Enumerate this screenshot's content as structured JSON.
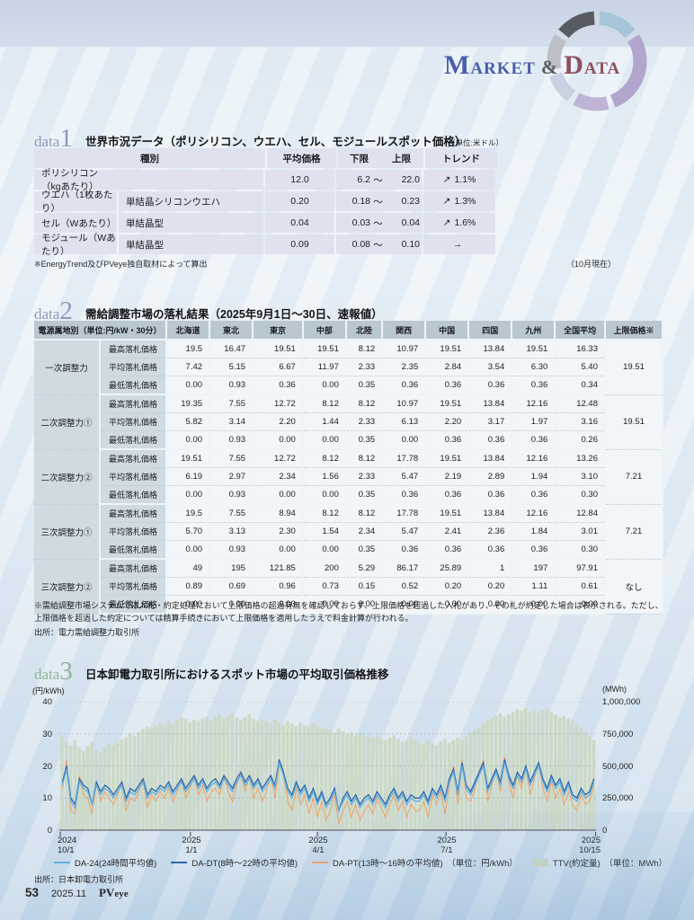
{
  "logo": {
    "m": "M",
    "arket": "ARKET",
    "amp": "&",
    "d": "D",
    "ata": "ATA"
  },
  "data1": {
    "word": "data",
    "num": "1",
    "title": "世界市況データ（ポリシリコン、ウエハ、セル、モジュールスポット価格）",
    "unit_note": "（単位:米ドル）",
    "headers": {
      "type": "種別",
      "avg": "平均価格",
      "lower": "下限",
      "upper": "上限",
      "trend": "トレンド"
    },
    "rows": [
      {
        "name": "ポリシリコン（kgあたり）",
        "spec": "",
        "avg": "12.0",
        "lower": "6.2",
        "tilde": "～",
        "upper": "22.0",
        "trend_arrow": "↗",
        "trend": "1.1%"
      },
      {
        "name": "ウエハ（1枚あたり）",
        "spec": "単結晶シリコンウエハ",
        "avg": "0.20",
        "lower": "0.18",
        "tilde": "～",
        "upper": "0.23",
        "trend_arrow": "↗",
        "trend": "1.3%"
      },
      {
        "name": "セル（Wあたり）",
        "spec": "単結晶型",
        "avg": "0.04",
        "lower": "0.03",
        "tilde": "～",
        "upper": "0.04",
        "trend_arrow": "↗",
        "trend": "1.6%"
      },
      {
        "name": "モジュール（Wあたり）",
        "spec": "単結晶型",
        "avg": "0.09",
        "lower": "0.08",
        "tilde": "～",
        "upper": "0.10",
        "trend_arrow": "→",
        "trend": ""
      }
    ],
    "footnote": "※EnergyTrend及びPVeye独自取材によって算出",
    "asof": "（10月現在）"
  },
  "data2": {
    "word": "data",
    "num": "2",
    "title": "需給調整市場の落札結果（2025年9月1日～30日、速報値）",
    "col_header_first": "電源属地別（単位:円/kW・30分）",
    "regions": [
      "北海道",
      "東北",
      "東京",
      "中部",
      "北陸",
      "関西",
      "中国",
      "四国",
      "九州",
      "全国平均"
    ],
    "limit_header": "上限価格※",
    "row_labels": [
      "最高落札価格",
      "平均落札価格",
      "最低落札価格"
    ],
    "groups": [
      {
        "name": "一次調整力",
        "max": [
          "19.5",
          "16.47",
          "19.51",
          "19.51",
          "8.12",
          "10.97",
          "19.51",
          "13.84",
          "19.51",
          "16.33"
        ],
        "avg": [
          "7.42",
          "5.15",
          "6.67",
          "11.97",
          "2.33",
          "2.35",
          "2.84",
          "3.54",
          "6.30",
          "5.40"
        ],
        "min": [
          "0.00",
          "0.93",
          "0.36",
          "0.00",
          "0.35",
          "0.36",
          "0.36",
          "0.36",
          "0.36",
          "0.34"
        ],
        "limit": "19.51"
      },
      {
        "name": "二次調整力①",
        "max": [
          "19.35",
          "7.55",
          "12.72",
          "8.12",
          "8.12",
          "10.97",
          "19.51",
          "13.84",
          "12.16",
          "12.48"
        ],
        "avg": [
          "5.82",
          "3.14",
          "2.20",
          "1.44",
          "2.33",
          "6.13",
          "2.20",
          "3.17",
          "1.97",
          "3.16"
        ],
        "min": [
          "0.00",
          "0.93",
          "0.00",
          "0.00",
          "0.35",
          "0.00",
          "0.36",
          "0.36",
          "0.36",
          "0.26"
        ],
        "limit": "19.51"
      },
      {
        "name": "二次調整力②",
        "max": [
          "19.51",
          "7.55",
          "12.72",
          "8.12",
          "8.12",
          "17.78",
          "19.51",
          "13.84",
          "12.16",
          "13.26"
        ],
        "avg": [
          "6.19",
          "2.97",
          "2.34",
          "1.56",
          "2.33",
          "5.47",
          "2.19",
          "2.89",
          "1.94",
          "3.10"
        ],
        "min": [
          "0.00",
          "0.93",
          "0.00",
          "0.00",
          "0.35",
          "0.36",
          "0.36",
          "0.36",
          "0.36",
          "0.30"
        ],
        "limit": "7.21"
      },
      {
        "name": "三次調整力①",
        "max": [
          "19.5",
          "7.55",
          "8.94",
          "8.12",
          "8.12",
          "17.78",
          "19.51",
          "13.84",
          "12.16",
          "12.84"
        ],
        "avg": [
          "5.70",
          "3.13",
          "2.30",
          "1.54",
          "2.34",
          "5.47",
          "2.41",
          "2.36",
          "1.84",
          "3.01"
        ],
        "min": [
          "0.00",
          "0.93",
          "0.00",
          "0.00",
          "0.35",
          "0.36",
          "0.36",
          "0.36",
          "0.36",
          "0.30"
        ],
        "limit": "7.21"
      },
      {
        "name": "三次調整力②",
        "max": [
          "49",
          "195",
          "121.85",
          "200",
          "5.29",
          "86.17",
          "25.89",
          "1",
          "197",
          "97.91"
        ],
        "avg": [
          "0.89",
          "0.69",
          "0.96",
          "0.73",
          "0.15",
          "0.52",
          "0.20",
          "0.20",
          "1.11",
          "0.61"
        ],
        "min": [
          "0.00",
          "0.00",
          "0.00",
          "0.00",
          "0.00",
          "0.00",
          "0.00",
          "0.00",
          "0.00",
          "0.00"
        ],
        "limit": "なし"
      }
    ],
    "footnote": "※需給調整市場システムでは入札・約定処理において上限価格の超過有無を確認しておらず、上限価格を超過した入札があり、その札が約定した場合は表示される。ただし、上限価格を超過した約定については精算手続きにおいて上限価格を適用したうえで料金計算が行われる。",
    "source": "出所：電力需給調整力取引所"
  },
  "data3": {
    "word": "data",
    "num": "3",
    "title": "日本卸電力取引所におけるスポット市場の平均取引価格推移",
    "legend": [
      "DA-24(24時間平均値)",
      "DA-DT(8時～22時の平均値)",
      "DA-PT(13時～16時の平均値)　（単位：円/kWh）",
      "TTV(約定量)　（単位：MWh）"
    ],
    "source": "出所：日本卸電力取引所"
  },
  "chart_data": {
    "type": "line",
    "title": "日本卸電力取引所におけるスポット市場の平均取引価格推移",
    "ylabel_left": "(円/kWh)",
    "ylabel_right": "(MWh)",
    "ylim_left": [
      0,
      40
    ],
    "ylim_right": [
      0,
      1000000
    ],
    "yticks_left": [
      0,
      10,
      20,
      30,
      40
    ],
    "yticks_right": [
      "0",
      "250,000",
      "500,000",
      "750,000",
      "1,000,000"
    ],
    "grid": "dotted horizontal",
    "legend_position": "bottom",
    "x_labels": [
      {
        "year": "2024",
        "date": "10/1",
        "pos": 0
      },
      {
        "year": "2025",
        "date": "1/1",
        "pos": 0.243
      },
      {
        "year": "2025",
        "date": "4/1",
        "pos": 0.48
      },
      {
        "year": "2025",
        "date": "7/1",
        "pos": 0.72
      },
      {
        "year": "2025",
        "date": "10/15",
        "pos": 1
      }
    ],
    "series": [
      {
        "name": "DA-24(24時間平均値)",
        "type": "line",
        "axis": "left",
        "color": "#5fb0e2",
        "values": [
          14,
          19,
          9,
          7,
          15,
          13,
          12,
          8,
          14,
          11,
          13,
          12,
          10,
          12,
          14,
          9,
          12,
          11,
          13,
          15,
          10,
          12,
          11,
          13,
          12,
          14,
          11,
          13,
          15,
          12,
          14,
          16,
          13,
          15,
          12,
          14,
          15,
          13,
          16,
          14,
          12,
          15,
          17,
          14,
          16,
          13,
          15,
          12,
          14,
          16,
          13,
          21,
          17,
          12,
          10,
          14,
          11,
          13,
          9,
          12,
          8,
          11,
          7,
          9,
          12,
          6,
          9,
          11,
          8,
          10,
          7,
          9,
          10,
          8,
          11,
          9,
          7,
          10,
          12,
          9,
          11,
          8,
          10,
          9,
          9,
          11,
          8,
          12,
          10,
          13,
          9,
          15,
          18,
          11,
          20,
          13,
          11,
          14,
          17,
          20,
          12,
          15,
          18,
          14,
          21,
          16,
          13,
          17,
          15,
          19,
          14,
          17,
          20,
          15,
          12,
          16,
          13,
          15,
          11,
          14,
          10,
          9,
          12,
          10,
          11,
          15
        ]
      },
      {
        "name": "DA-DT(8時～22時の平均値)",
        "type": "line",
        "axis": "left",
        "color": "#2f63ad",
        "values": [
          15,
          20,
          10,
          8,
          16,
          14,
          13,
          8,
          15,
          12,
          14,
          13,
          11,
          13,
          15,
          10,
          13,
          12,
          14,
          16,
          11,
          13,
          12,
          14,
          13,
          15,
          12,
          14,
          16,
          13,
          15,
          17,
          14,
          16,
          13,
          15,
          16,
          14,
          17,
          15,
          13,
          16,
          18,
          15,
          17,
          14,
          16,
          13,
          15,
          17,
          14,
          22,
          18,
          13,
          11,
          15,
          12,
          14,
          10,
          13,
          9,
          12,
          8,
          10,
          13,
          6,
          10,
          12,
          9,
          11,
          8,
          10,
          11,
          9,
          12,
          10,
          8,
          11,
          13,
          10,
          12,
          9,
          11,
          10,
          10,
          12,
          9,
          13,
          11,
          14,
          10,
          16,
          19,
          12,
          21,
          14,
          12,
          15,
          18,
          21,
          13,
          16,
          19,
          15,
          22,
          17,
          14,
          18,
          16,
          20,
          15,
          18,
          21,
          16,
          13,
          17,
          14,
          16,
          12,
          15,
          11,
          10,
          13,
          11,
          12,
          16
        ]
      },
      {
        "name": "DA-PT(13時～16時の平均値)（単位：円/kWh）",
        "type": "line",
        "axis": "left",
        "color": "#f2a066",
        "values": [
          13,
          22,
          6,
          5,
          17,
          11,
          10,
          5,
          15,
          9,
          12,
          10,
          8,
          11,
          15,
          6,
          10,
          9,
          12,
          16,
          7,
          11,
          9,
          12,
          10,
          13,
          9,
          12,
          16,
          10,
          13,
          17,
          11,
          14,
          9,
          12,
          13,
          11,
          17,
          12,
          9,
          14,
          18,
          12,
          17,
          10,
          13,
          9,
          12,
          17,
          10,
          20,
          18,
          9,
          6,
          13,
          8,
          11,
          5,
          10,
          4,
          9,
          3,
          6,
          11,
          2,
          6,
          9,
          4,
          8,
          3,
          6,
          8,
          5,
          10,
          7,
          4,
          8,
          11,
          6,
          9,
          4,
          8,
          6,
          6,
          9,
          4,
          11,
          8,
          12,
          5,
          14,
          20,
          8,
          22,
          10,
          9,
          13,
          18,
          22,
          9,
          14,
          19,
          12,
          23,
          15,
          10,
          17,
          13,
          20,
          11,
          16,
          21,
          13,
          9,
          15,
          10,
          13,
          8,
          12,
          8,
          6,
          11,
          8,
          9,
          14
        ]
      },
      {
        "name": "TTV(約定量)（単位：MWh）",
        "type": "bar",
        "axis": "right",
        "color": "#ccd9c5",
        "values": [
          725000,
          690000,
          660000,
          700000,
          645000,
          615000,
          655000,
          685000,
          625000,
          605000,
          645000,
          670000,
          660000,
          685000,
          705000,
          725000,
          750000,
          735000,
          765000,
          785000,
          805000,
          795000,
          815000,
          830000,
          820000,
          850000,
          830000,
          860000,
          880000,
          865000,
          840000,
          860000,
          850000,
          870000,
          880000,
          855000,
          875000,
          900000,
          870000,
          890000,
          910000,
          880000,
          860000,
          880000,
          900000,
          870000,
          850000,
          860000,
          850000,
          830000,
          860000,
          840000,
          820000,
          850000,
          830000,
          810000,
          840000,
          820000,
          800000,
          830000,
          810000,
          790000,
          800000,
          780000,
          760000,
          790000,
          770000,
          750000,
          760000,
          740000,
          750000,
          730000,
          740000,
          720000,
          730000,
          710000,
          700000,
          720000,
          740000,
          710000,
          690000,
          700000,
          720000,
          700000,
          690000,
          670000,
          700000,
          680000,
          660000,
          690000,
          710000,
          680000,
          700000,
          720000,
          700000,
          730000,
          760000,
          780000,
          800000,
          830000,
          850000,
          870000,
          890000,
          910000,
          880000,
          900000,
          920000,
          940000,
          930000,
          950000,
          920000,
          940000,
          910000,
          930000,
          950000,
          920000,
          900000,
          880000,
          890000,
          870000,
          850000,
          820000,
          800000,
          760000,
          730000,
          700000
        ]
      }
    ]
  },
  "footer": {
    "page_number": "53",
    "issue": "2025.11",
    "brand_pv": "PV",
    "brand_eye": "eye"
  }
}
